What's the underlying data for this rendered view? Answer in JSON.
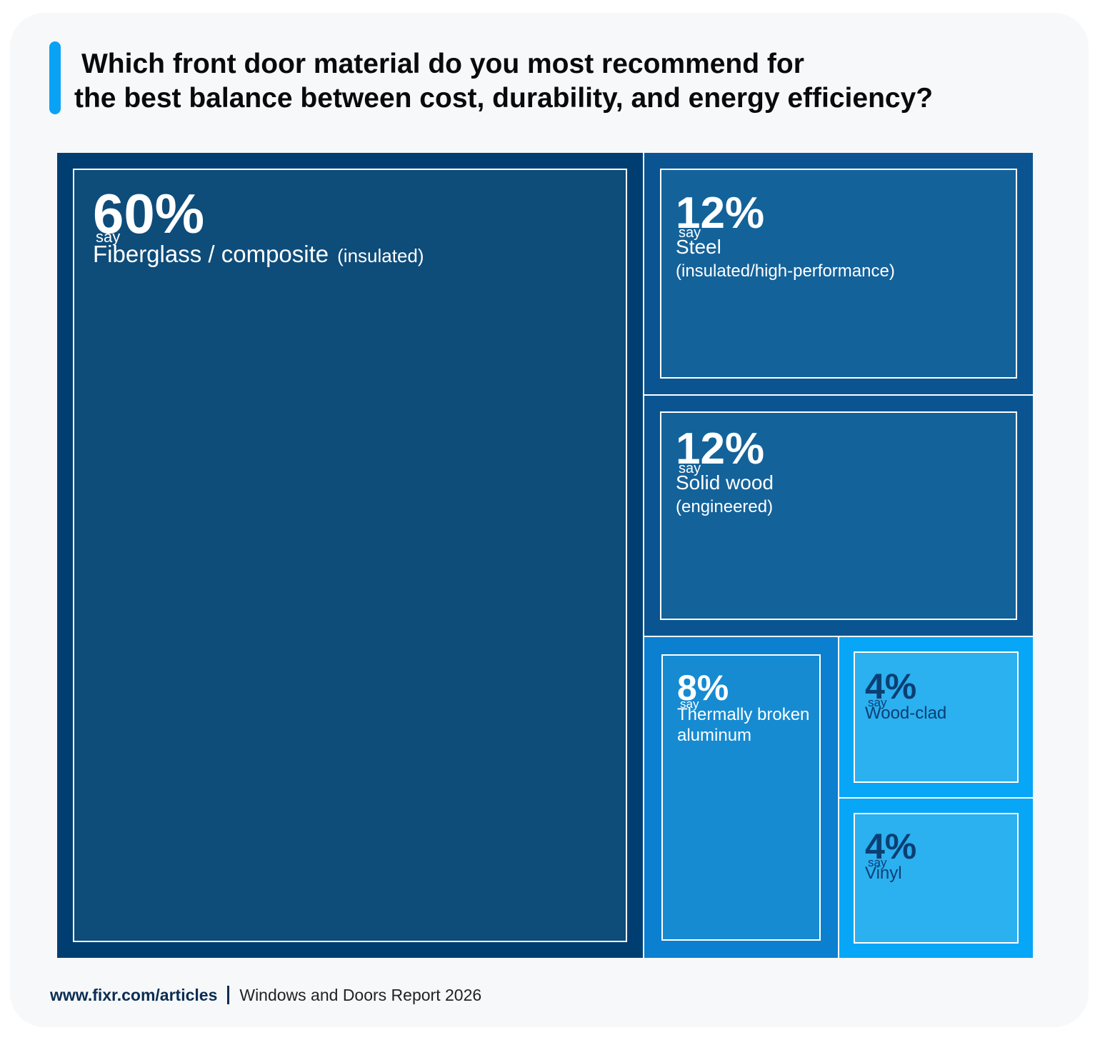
{
  "title": {
    "line1": "Which front door material do you most recommend for",
    "line2": "the best balance between cost, durability, and energy efficiency?"
  },
  "colors": {
    "accent": "#0aa2f5",
    "fiberglass": "#0e4c7a",
    "steel": "#14629a",
    "wood": "#14629a",
    "aluminum": "#168bd2",
    "wood_clad": "#2bb0f0",
    "vinyl": "#2bb0f0"
  },
  "chart_data": {
    "type": "treemap",
    "title": "Which front door material do you most recommend for the best balance between cost, durability, and energy efficiency?",
    "unit": "%",
    "suffix": "say",
    "items": [
      {
        "id": "fiberglass",
        "value": 60,
        "pct_label": "60%",
        "label": "Fiberglass / composite",
        "sublabel": "(insulated)"
      },
      {
        "id": "steel",
        "value": 12,
        "pct_label": "12%",
        "label": "Steel",
        "sublabel": "(insulated/high-performance)"
      },
      {
        "id": "wood",
        "value": 12,
        "pct_label": "12%",
        "label": "Solid wood",
        "sublabel": "(engineered)"
      },
      {
        "id": "aluminum",
        "value": 8,
        "pct_label": "8%",
        "label": "Thermally broken aluminum",
        "sublabel": ""
      },
      {
        "id": "wood_clad",
        "value": 4,
        "pct_label": "4%",
        "label": "Wood-clad",
        "sublabel": ""
      },
      {
        "id": "vinyl",
        "value": 4,
        "pct_label": "4%",
        "label": "Vinyl",
        "sublabel": ""
      }
    ]
  },
  "footer": {
    "url": "www.fixr.com/articles",
    "report": "Windows and Doors Report 2026"
  }
}
